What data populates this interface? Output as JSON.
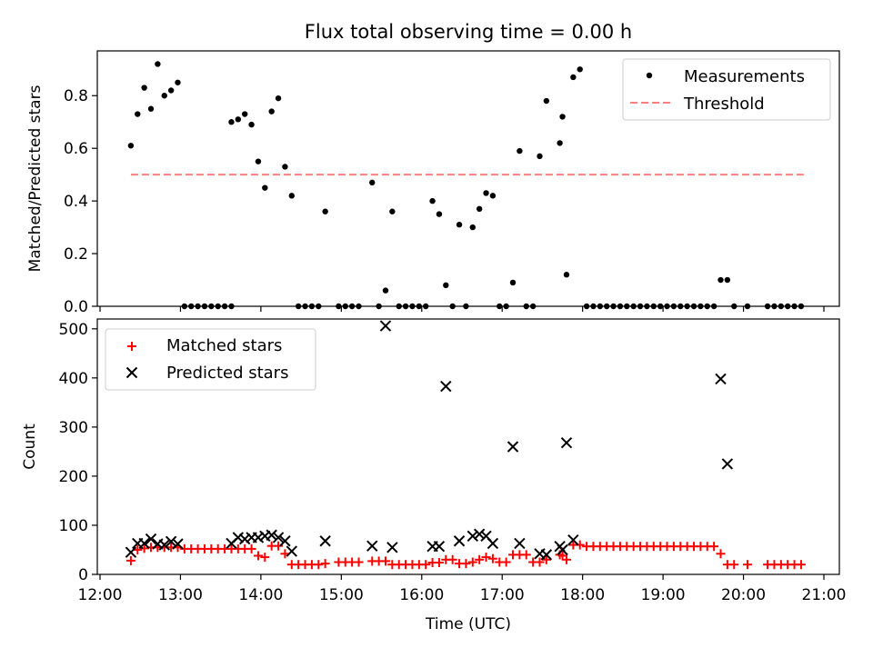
{
  "title": "Flux total observing time = 0.00 h",
  "colors": {
    "measure": "#000000",
    "threshold": "#ff7f7f",
    "matched": "#ff0000",
    "predicted": "#000000"
  },
  "chart_data": [
    {
      "type": "scatter",
      "title": "Flux total observing time = 0.00 h",
      "xlabel": "",
      "ylabel": "Matched/Predicted stars",
      "xlim": [
        "12:00",
        "21:00"
      ],
      "ylim": [
        0,
        0.97
      ],
      "yticks": [
        0.0,
        0.2,
        0.4,
        0.6,
        0.8
      ],
      "ytick_labels": [
        "0.0",
        "0.2",
        "0.4",
        "0.6",
        "0.8"
      ],
      "grid": false,
      "legend_position": "top-right",
      "legend": [
        "Measurements",
        "Threshold"
      ],
      "threshold": {
        "name": "Threshold",
        "value": 0.5,
        "x": [
          "12:23",
          "20:45"
        ]
      },
      "series": [
        {
          "name": "Measurements",
          "marker": "dot",
          "points": [
            [
              "12:23",
              0.61
            ],
            [
              "12:28",
              0.73
            ],
            [
              "12:33",
              0.83
            ],
            [
              "12:38",
              0.75
            ],
            [
              "12:43",
              0.92
            ],
            [
              "12:48",
              0.8
            ],
            [
              "12:53",
              0.82
            ],
            [
              "12:58",
              0.85
            ],
            [
              "13:03",
              0.0
            ],
            [
              "13:08",
              0.0
            ],
            [
              "13:13",
              0.0
            ],
            [
              "13:18",
              0.0
            ],
            [
              "13:23",
              0.0
            ],
            [
              "13:28",
              0.0
            ],
            [
              "13:33",
              0.0
            ],
            [
              "13:38",
              0.0
            ],
            [
              "13:38",
              0.7
            ],
            [
              "13:43",
              0.71
            ],
            [
              "13:48",
              0.73
            ],
            [
              "13:53",
              0.69
            ],
            [
              "13:58",
              0.55
            ],
            [
              "14:03",
              0.45
            ],
            [
              "14:08",
              0.74
            ],
            [
              "14:13",
              0.79
            ],
            [
              "14:18",
              0.53
            ],
            [
              "14:23",
              0.42
            ],
            [
              "14:28",
              0.0
            ],
            [
              "14:33",
              0.0
            ],
            [
              "14:38",
              0.0
            ],
            [
              "14:43",
              0.0
            ],
            [
              "14:48",
              0.36
            ],
            [
              "14:58",
              0.0
            ],
            [
              "15:03",
              0.0
            ],
            [
              "15:08",
              0.0
            ],
            [
              "15:13",
              0.0
            ],
            [
              "15:23",
              0.47
            ],
            [
              "15:28",
              0.0
            ],
            [
              "15:33",
              0.06
            ],
            [
              "15:38",
              0.36
            ],
            [
              "15:43",
              0.0
            ],
            [
              "15:48",
              0.0
            ],
            [
              "15:53",
              0.0
            ],
            [
              "15:58",
              0.0
            ],
            [
              "16:03",
              0.0
            ],
            [
              "16:08",
              0.4
            ],
            [
              "16:13",
              0.35
            ],
            [
              "16:18",
              0.08
            ],
            [
              "16:23",
              0.0
            ],
            [
              "16:28",
              0.31
            ],
            [
              "16:33",
              0.0
            ],
            [
              "16:38",
              0.3
            ],
            [
              "16:43",
              0.37
            ],
            [
              "16:48",
              0.43
            ],
            [
              "16:53",
              0.42
            ],
            [
              "16:58",
              0.0
            ],
            [
              "17:03",
              0.0
            ],
            [
              "17:08",
              0.09
            ],
            [
              "17:13",
              0.59
            ],
            [
              "17:18",
              0.0
            ],
            [
              "17:23",
              0.0
            ],
            [
              "17:28",
              0.57
            ],
            [
              "17:33",
              0.78
            ],
            [
              "17:43",
              0.62
            ],
            [
              "17:45",
              0.72
            ],
            [
              "17:48",
              0.12
            ],
            [
              "17:53",
              0.87
            ],
            [
              "17:58",
              0.9
            ],
            [
              "18:03",
              0.0
            ],
            [
              "18:08",
              0.0
            ],
            [
              "18:13",
              0.0
            ],
            [
              "18:18",
              0.0
            ],
            [
              "18:23",
              0.0
            ],
            [
              "18:28",
              0.0
            ],
            [
              "18:33",
              0.0
            ],
            [
              "18:38",
              0.0
            ],
            [
              "18:43",
              0.0
            ],
            [
              "18:48",
              0.0
            ],
            [
              "18:53",
              0.0
            ],
            [
              "18:58",
              0.0
            ],
            [
              "19:03",
              0.0
            ],
            [
              "19:08",
              0.0
            ],
            [
              "19:13",
              0.0
            ],
            [
              "19:18",
              0.0
            ],
            [
              "19:23",
              0.0
            ],
            [
              "19:28",
              0.0
            ],
            [
              "19:33",
              0.0
            ],
            [
              "19:38",
              0.0
            ],
            [
              "19:43",
              0.1
            ],
            [
              "19:48",
              0.1
            ],
            [
              "19:53",
              0.0
            ],
            [
              "20:03",
              0.0
            ],
            [
              "20:18",
              0.0
            ],
            [
              "20:23",
              0.0
            ],
            [
              "20:28",
              0.0
            ],
            [
              "20:33",
              0.0
            ],
            [
              "20:38",
              0.0
            ],
            [
              "20:43",
              0.0
            ]
          ]
        }
      ]
    },
    {
      "type": "scatter",
      "title": "",
      "xlabel": "Time (UTC)",
      "ylabel": "Count",
      "xlim": [
        "12:00",
        "21:00"
      ],
      "ylim": [
        0,
        520
      ],
      "yticks": [
        0,
        100,
        200,
        300,
        400,
        500
      ],
      "ytick_labels": [
        "0",
        "100",
        "200",
        "300",
        "400",
        "500"
      ],
      "xticks": [
        "12:00",
        "13:00",
        "14:00",
        "15:00",
        "16:00",
        "17:00",
        "18:00",
        "19:00",
        "20:00",
        "21:00"
      ],
      "grid": false,
      "legend_position": "top-left",
      "legend": [
        "Matched stars",
        "Predicted stars"
      ],
      "series": [
        {
          "name": "Matched stars",
          "marker": "plus",
          "points": [
            [
              "12:23",
              28
            ],
            [
              "12:28",
              50
            ],
            [
              "12:33",
              53
            ],
            [
              "12:38",
              55
            ],
            [
              "12:43",
              55
            ],
            [
              "12:48",
              55
            ],
            [
              "12:53",
              55
            ],
            [
              "12:58",
              55
            ],
            [
              "13:03",
              52
            ],
            [
              "13:08",
              52
            ],
            [
              "13:13",
              52
            ],
            [
              "13:18",
              52
            ],
            [
              "13:23",
              52
            ],
            [
              "13:28",
              52
            ],
            [
              "13:33",
              52
            ],
            [
              "13:38",
              52
            ],
            [
              "13:43",
              52
            ],
            [
              "13:48",
              52
            ],
            [
              "13:53",
              52
            ],
            [
              "13:58",
              38
            ],
            [
              "14:03",
              35
            ],
            [
              "14:08",
              58
            ],
            [
              "14:13",
              58
            ],
            [
              "14:18",
              42
            ],
            [
              "14:23",
              20
            ],
            [
              "14:28",
              20
            ],
            [
              "14:33",
              20
            ],
            [
              "14:38",
              20
            ],
            [
              "14:43",
              20
            ],
            [
              "14:48",
              22
            ],
            [
              "14:58",
              25
            ],
            [
              "15:03",
              25
            ],
            [
              "15:08",
              25
            ],
            [
              "15:13",
              25
            ],
            [
              "15:23",
              27
            ],
            [
              "15:28",
              27
            ],
            [
              "15:33",
              27
            ],
            [
              "15:38",
              20
            ],
            [
              "15:43",
              20
            ],
            [
              "15:48",
              20
            ],
            [
              "15:53",
              20
            ],
            [
              "15:58",
              20
            ],
            [
              "16:03",
              20
            ],
            [
              "16:08",
              24
            ],
            [
              "16:13",
              24
            ],
            [
              "16:18",
              30
            ],
            [
              "16:23",
              30
            ],
            [
              "16:28",
              22
            ],
            [
              "16:33",
              22
            ],
            [
              "16:38",
              25
            ],
            [
              "16:43",
              30
            ],
            [
              "16:48",
              35
            ],
            [
              "16:53",
              32
            ],
            [
              "16:58",
              25
            ],
            [
              "17:03",
              25
            ],
            [
              "17:08",
              40
            ],
            [
              "17:13",
              40
            ],
            [
              "17:18",
              40
            ],
            [
              "17:23",
              25
            ],
            [
              "17:28",
              25
            ],
            [
              "17:33",
              30
            ],
            [
              "17:43",
              40
            ],
            [
              "17:45",
              38
            ],
            [
              "17:48",
              30
            ],
            [
              "17:53",
              60
            ],
            [
              "17:58",
              60
            ],
            [
              "18:03",
              57
            ],
            [
              "18:08",
              57
            ],
            [
              "18:13",
              57
            ],
            [
              "18:18",
              57
            ],
            [
              "18:23",
              57
            ],
            [
              "18:28",
              57
            ],
            [
              "18:33",
              57
            ],
            [
              "18:38",
              57
            ],
            [
              "18:43",
              57
            ],
            [
              "18:48",
              57
            ],
            [
              "18:53",
              57
            ],
            [
              "18:58",
              57
            ],
            [
              "19:03",
              57
            ],
            [
              "19:08",
              57
            ],
            [
              "19:13",
              57
            ],
            [
              "19:18",
              57
            ],
            [
              "19:23",
              57
            ],
            [
              "19:28",
              57
            ],
            [
              "19:33",
              57
            ],
            [
              "19:38",
              57
            ],
            [
              "19:43",
              42
            ],
            [
              "19:48",
              20
            ],
            [
              "19:53",
              20
            ],
            [
              "20:03",
              20
            ],
            [
              "20:18",
              20
            ],
            [
              "20:23",
              20
            ],
            [
              "20:28",
              20
            ],
            [
              "20:33",
              20
            ],
            [
              "20:38",
              20
            ],
            [
              "20:43",
              20
            ]
          ]
        },
        {
          "name": "Predicted stars",
          "marker": "x",
          "points": [
            [
              "12:23",
              45
            ],
            [
              "12:28",
              63
            ],
            [
              "12:33",
              63
            ],
            [
              "12:38",
              72
            ],
            [
              "12:43",
              62
            ],
            [
              "12:48",
              60
            ],
            [
              "12:53",
              67
            ],
            [
              "12:58",
              62
            ],
            [
              "13:38",
              63
            ],
            [
              "13:43",
              75
            ],
            [
              "13:48",
              72
            ],
            [
              "13:53",
              75
            ],
            [
              "13:58",
              75
            ],
            [
              "14:03",
              78
            ],
            [
              "14:08",
              80
            ],
            [
              "14:13",
              75
            ],
            [
              "14:18",
              68
            ],
            [
              "14:23",
              47
            ],
            [
              "14:48",
              68
            ],
            [
              "15:23",
              58
            ],
            [
              "15:33",
              506
            ],
            [
              "15:38",
              55
            ],
            [
              "16:08",
              57
            ],
            [
              "16:13",
              57
            ],
            [
              "16:18",
              383
            ],
            [
              "16:28",
              68
            ],
            [
              "16:38",
              78
            ],
            [
              "16:43",
              82
            ],
            [
              "16:48",
              78
            ],
            [
              "16:53",
              63
            ],
            [
              "17:08",
              260
            ],
            [
              "17:13",
              63
            ],
            [
              "17:28",
              42
            ],
            [
              "17:33",
              40
            ],
            [
              "17:43",
              57
            ],
            [
              "17:45",
              50
            ],
            [
              "17:48",
              268
            ],
            [
              "17:53",
              70
            ],
            [
              "19:43",
              398
            ],
            [
              "19:48",
              225
            ]
          ]
        }
      ]
    }
  ]
}
